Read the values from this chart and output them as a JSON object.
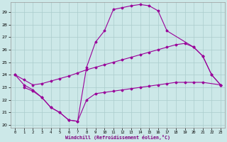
{
  "xlabel": "Windchill (Refroidissement éolien,°C)",
  "bg_color": "#cce8e8",
  "grid_color": "#aacccc",
  "line_color": "#990099",
  "xlim": [
    -0.5,
    23.5
  ],
  "ylim": [
    19.8,
    29.8
  ],
  "yticks": [
    20,
    21,
    22,
    23,
    24,
    25,
    26,
    27,
    28,
    29
  ],
  "xticks": [
    0,
    1,
    2,
    3,
    4,
    5,
    6,
    7,
    8,
    9,
    10,
    11,
    12,
    13,
    14,
    15,
    16,
    17,
    18,
    19,
    20,
    21,
    22,
    23
  ],
  "curves": [
    {
      "name": "top_arch",
      "x": [
        0,
        1,
        2,
        3,
        4,
        5,
        6,
        7,
        8,
        9,
        10,
        11,
        12,
        13,
        14,
        15,
        16,
        17,
        20,
        21,
        22,
        23
      ],
      "y": [
        24.0,
        23.2,
        22.8,
        22.2,
        21.4,
        21.0,
        20.4,
        20.3,
        24.6,
        26.6,
        27.5,
        29.2,
        29.35,
        29.5,
        29.6,
        29.5,
        29.1,
        27.5,
        26.2,
        25.5,
        24.0,
        23.2
      ]
    },
    {
      "name": "mid_upper_diag",
      "x": [
        0,
        1,
        2,
        3,
        4,
        5,
        6,
        7,
        8,
        9,
        10,
        11,
        12,
        13,
        14,
        15,
        16,
        17,
        18,
        19,
        20,
        21,
        22,
        23
      ],
      "y": [
        24.0,
        23.6,
        23.2,
        23.3,
        23.5,
        23.7,
        23.9,
        24.15,
        24.4,
        24.6,
        24.8,
        25.0,
        25.2,
        25.4,
        25.6,
        25.8,
        26.0,
        26.2,
        26.4,
        26.5,
        26.2,
        25.5,
        24.0,
        23.2
      ]
    },
    {
      "name": "mid_lower_flat",
      "x": [
        1,
        2,
        3,
        4,
        5,
        6,
        7,
        8,
        9,
        10,
        11,
        12,
        13,
        14,
        15,
        16,
        17,
        18,
        19,
        20,
        21,
        23
      ],
      "y": [
        23.0,
        22.7,
        22.2,
        21.4,
        21.0,
        20.4,
        20.3,
        22.0,
        22.5,
        22.6,
        22.7,
        22.8,
        22.9,
        23.0,
        23.1,
        23.2,
        23.3,
        23.4,
        23.4,
        23.4,
        23.4,
        23.2
      ]
    }
  ]
}
